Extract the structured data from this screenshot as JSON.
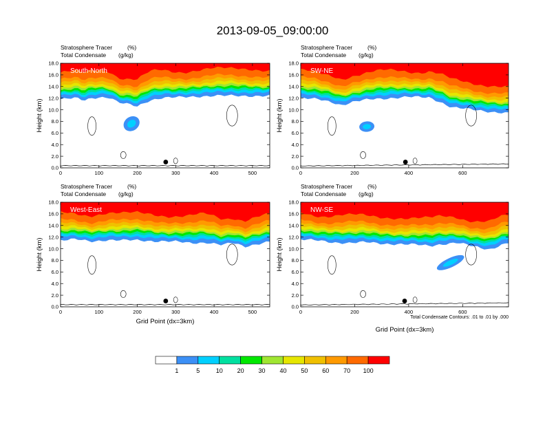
{
  "figure_title": "2013-09-05_09:00:00",
  "footnote": "Total Condensate Contours: .01 to .01 by .000",
  "chart_data": [
    {
      "type": "contour",
      "panel_label": "South-North",
      "subtitle_left_1": "Stratosphere Tracer",
      "subtitle_right_1": "(%)",
      "subtitle_left_2": "Total Condensate",
      "subtitle_right_2": "(g/kg)",
      "ylabel": "Height (km)",
      "xlabel": "",
      "xlim": [
        0,
        545
      ],
      "ylim": [
        0,
        18
      ],
      "x_ticks": [
        "0",
        "100",
        "200",
        "300",
        "400",
        "500"
      ],
      "y_ticks": [
        "0.0",
        "2.0",
        "4.0",
        "6.0",
        "8.0",
        "10.0",
        "12.0",
        "14.0",
        "16.0",
        "18.0"
      ],
      "tracer_base_km": [
        [
          0,
          11.8
        ],
        [
          40,
          12.0
        ],
        [
          60,
          11.6
        ],
        [
          80,
          12.0
        ],
        [
          100,
          12.2
        ],
        [
          130,
          12.1
        ],
        [
          150,
          11.2
        ],
        [
          170,
          11.0
        ],
        [
          200,
          10.6
        ],
        [
          230,
          11.6
        ],
        [
          260,
          12.0
        ],
        [
          300,
          12.1
        ],
        [
          350,
          12.3
        ],
        [
          400,
          12.4
        ],
        [
          450,
          12.4
        ],
        [
          500,
          12.4
        ],
        [
          545,
          12.4
        ]
      ],
      "plume": {
        "center": [
          185,
          7.6
        ],
        "half_width_gridpts": 22,
        "half_height_km": 1.2,
        "tilt_deg": 35
      },
      "marker": {
        "x": 274,
        "y_km": 1.0
      }
    },
    {
      "type": "contour",
      "panel_label": "SW-NE",
      "subtitle_left_1": "Stratosphere Tracer",
      "subtitle_right_1": "(%)",
      "subtitle_left_2": "Total Condensate",
      "subtitle_right_2": "(g/kg)",
      "ylabel": "Height (km)",
      "xlabel": "",
      "xlim": [
        0,
        770
      ],
      "ylim": [
        0,
        18
      ],
      "x_ticks": [
        "0",
        "200",
        "400",
        "600"
      ],
      "y_ticks": [
        "0.0",
        "2.0",
        "4.0",
        "6.0",
        "8.0",
        "10.0",
        "12.0",
        "14.0",
        "16.0",
        "18.0"
      ],
      "tracer_base_km": [
        [
          0,
          12.0
        ],
        [
          60,
          11.8
        ],
        [
          120,
          11.3
        ],
        [
          150,
          10.8
        ],
        [
          200,
          11.4
        ],
        [
          260,
          11.8
        ],
        [
          320,
          12.0
        ],
        [
          400,
          12.2
        ],
        [
          480,
          12.1
        ],
        [
          520,
          11.3
        ],
        [
          560,
          10.4
        ],
        [
          600,
          10.2
        ],
        [
          660,
          9.9
        ],
        [
          720,
          9.6
        ],
        [
          770,
          9.4
        ]
      ],
      "plume": {
        "center": [
          245,
          7.1
        ],
        "half_width_gridpts": 28,
        "half_height_km": 0.9,
        "tilt_deg": 5
      },
      "marker": {
        "x": 388,
        "y_km": 1.0
      }
    },
    {
      "type": "contour",
      "panel_label": "West-East",
      "subtitle_left_1": "Stratosphere Tracer",
      "subtitle_right_1": "(%)",
      "subtitle_left_2": "Total Condensate",
      "subtitle_right_2": "(g/kg)",
      "ylabel": "Height (km)",
      "xlabel": "Grid Point (dx=3km)",
      "xlim": [
        0,
        545
      ],
      "ylim": [
        0,
        18
      ],
      "x_ticks": [
        "0",
        "100",
        "200",
        "300",
        "400",
        "500"
      ],
      "y_ticks": [
        "0.0",
        "2.0",
        "4.0",
        "6.0",
        "8.0",
        "10.0",
        "12.0",
        "14.0",
        "16.0",
        "18.0"
      ],
      "tracer_base_km": [
        [
          0,
          11.4
        ],
        [
          40,
          11.6
        ],
        [
          80,
          11.3
        ],
        [
          120,
          11.5
        ],
        [
          160,
          11.4
        ],
        [
          200,
          11.5
        ],
        [
          250,
          11.3
        ],
        [
          300,
          11.2
        ],
        [
          340,
          11.0
        ],
        [
          380,
          11.1
        ],
        [
          420,
          10.6
        ],
        [
          450,
          11.0
        ],
        [
          480,
          10.4
        ],
        [
          510,
          10.8
        ],
        [
          545,
          11.2
        ]
      ],
      "plume": null,
      "marker": {
        "x": 274,
        "y_km": 1.0
      }
    },
    {
      "type": "contour",
      "panel_label": "NW-SE",
      "subtitle_left_1": "Stratosphere Tracer",
      "subtitle_right_1": "(%)",
      "subtitle_left_2": "Total Condensate",
      "subtitle_right_2": "(g/kg)",
      "ylabel": "Height (km)",
      "xlabel": "Grid Point (dx=3km)",
      "xlim": [
        0,
        770
      ],
      "ylim": [
        0,
        18
      ],
      "x_ticks": [
        "0",
        "200",
        "400",
        "600"
      ],
      "y_ticks": [
        "0.0",
        "2.0",
        "4.0",
        "6.0",
        "8.0",
        "10.0",
        "12.0",
        "14.0",
        "16.0",
        "18.0"
      ],
      "tracer_base_km": [
        [
          0,
          11.6
        ],
        [
          60,
          11.4
        ],
        [
          120,
          11.1
        ],
        [
          180,
          11.0
        ],
        [
          240,
          11.1
        ],
        [
          300,
          10.9
        ],
        [
          360,
          10.8
        ],
        [
          420,
          10.7
        ],
        [
          480,
          10.5
        ],
        [
          520,
          10.8
        ],
        [
          580,
          11.0
        ],
        [
          640,
          10.4
        ],
        [
          700,
          9.9
        ],
        [
          740,
          10.6
        ],
        [
          770,
          11.0
        ]
      ],
      "plume": {
        "center": [
          555,
          7.6
        ],
        "half_width_gridpts": 55,
        "half_height_km": 0.8,
        "tilt_deg": 25
      },
      "marker": {
        "x": 385,
        "y_km": 1.0
      }
    }
  ],
  "colorbar": {
    "labels": [
      "1",
      "5",
      "10",
      "20",
      "30",
      "40",
      "50",
      "60",
      "70",
      "100"
    ],
    "colors": [
      "#ffffff",
      "#3c90f6",
      "#00d0ff",
      "#00e0a0",
      "#00e800",
      "#a0e632",
      "#e6e600",
      "#f0c000",
      "#ff9a00",
      "#ff6a00",
      "#ff0000"
    ]
  }
}
